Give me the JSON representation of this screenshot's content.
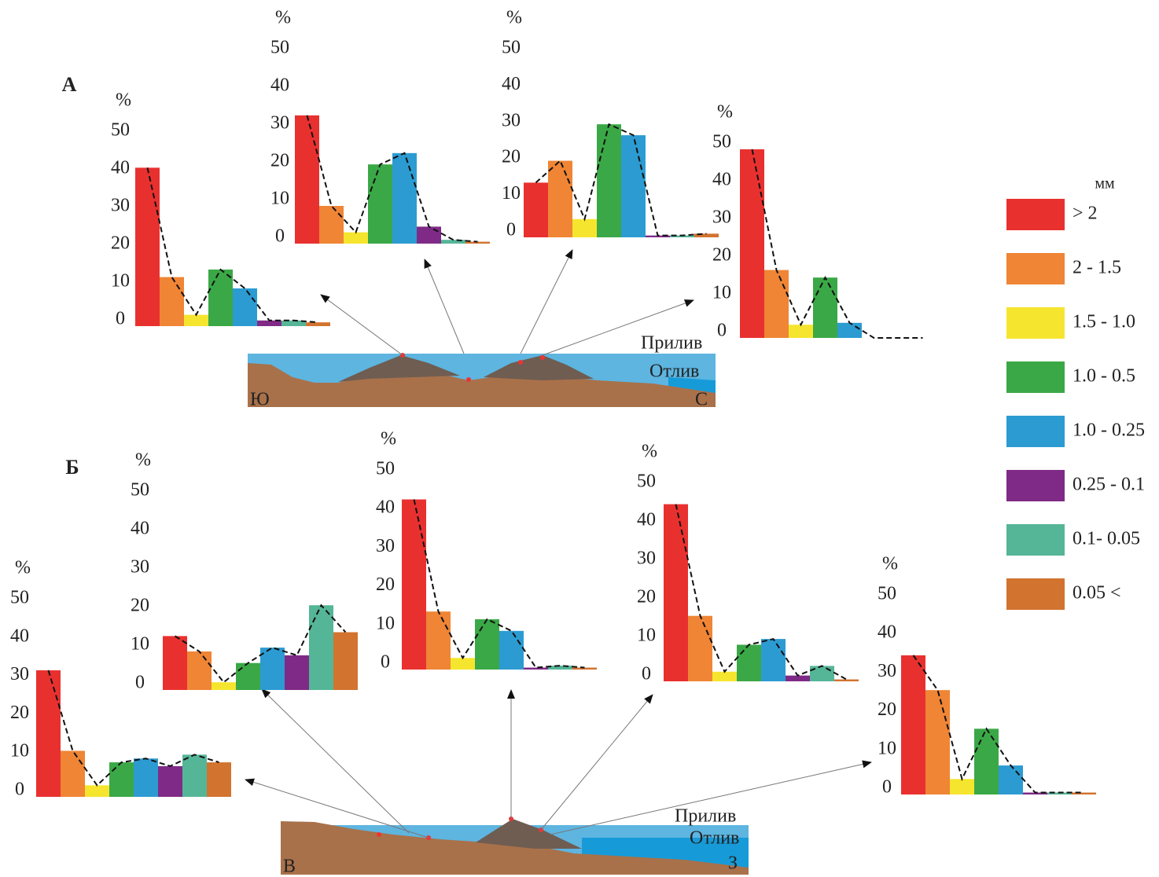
{
  "panels": [
    {
      "label": "А",
      "section": {
        "high_tide": "Прилив",
        "low_tide": "Отлив",
        "left": "Ю",
        "right": "С"
      }
    },
    {
      "label": "Б",
      "section": {
        "high_tide": "Прилив",
        "low_tide": "Отлив",
        "left": "В",
        "right": "З"
      }
    }
  ],
  "legend": {
    "title": "мм",
    "labels": [
      "> 2",
      "2 - 1.5",
      "1.5 - 1.0",
      "1.0 - 0.5",
      "1.0 - 0.25",
      "0.25 - 0.1",
      "0.1- 0.05",
      "0.05 <"
    ],
    "colors": [
      "#e8312f",
      "#ef8535",
      "#f6e52e",
      "#3aa846",
      "#2c9bd2",
      "#7f2a86",
      "#55b597",
      "#d2732f"
    ]
  },
  "chart_data": [
    {
      "type": "bar",
      "y_label": "%",
      "ylim": [
        0,
        50
      ],
      "yticks": [
        0,
        10,
        20,
        30,
        40,
        50
      ],
      "values": [
        42,
        13,
        3,
        15,
        10,
        1.5,
        1.5,
        1
      ]
    },
    {
      "type": "bar",
      "y_label": "%",
      "ylim": [
        0,
        50
      ],
      "yticks": [
        0,
        10,
        20,
        30,
        40,
        50
      ],
      "values": [
        34,
        10,
        3,
        21,
        24,
        4.5,
        1,
        0.5
      ]
    },
    {
      "type": "bar",
      "y_label": "%",
      "ylim": [
        0,
        50
      ],
      "yticks": [
        0,
        10,
        20,
        30,
        40,
        50
      ],
      "values": [
        15,
        21,
        5,
        31,
        28,
        0.5,
        0.5,
        1
      ]
    },
    {
      "type": "bar",
      "y_label": "%",
      "ylim": [
        0,
        50
      ],
      "yticks": [
        0,
        10,
        20,
        30,
        40,
        50
      ],
      "values": [
        50,
        18,
        3.5,
        16,
        4,
        0,
        0,
        0
      ]
    },
    {
      "type": "bar",
      "y_label": "%",
      "ylim": [
        0,
        50
      ],
      "yticks": [
        0,
        10,
        20,
        30,
        40,
        50
      ],
      "values": [
        33,
        12,
        3,
        9,
        10,
        8,
        11,
        9
      ]
    },
    {
      "type": "bar",
      "y_label": "%",
      "ylim": [
        0,
        50
      ],
      "yticks": [
        0,
        10,
        20,
        30,
        40,
        50
      ],
      "values": [
        14,
        10,
        2,
        7,
        11,
        9,
        22,
        15
      ]
    },
    {
      "type": "bar",
      "y_label": "%",
      "ylim": [
        0,
        50
      ],
      "yticks": [
        0,
        10,
        20,
        30,
        40,
        50
      ],
      "values": [
        44,
        15,
        3,
        13,
        10,
        0.5,
        1,
        0.5
      ]
    },
    {
      "type": "bar",
      "y_label": "%",
      "ylim": [
        0,
        50
      ],
      "yticks": [
        0,
        10,
        20,
        30,
        40,
        50
      ],
      "values": [
        46,
        17,
        2.5,
        9.5,
        11,
        1.5,
        4,
        0.5
      ]
    },
    {
      "type": "bar",
      "y_label": "%",
      "ylim": [
        0,
        50
      ],
      "yticks": [
        0,
        10,
        20,
        30,
        40,
        50
      ],
      "values": [
        36,
        27,
        4,
        17,
        7.5,
        0.5,
        0.5,
        0.5
      ]
    }
  ]
}
